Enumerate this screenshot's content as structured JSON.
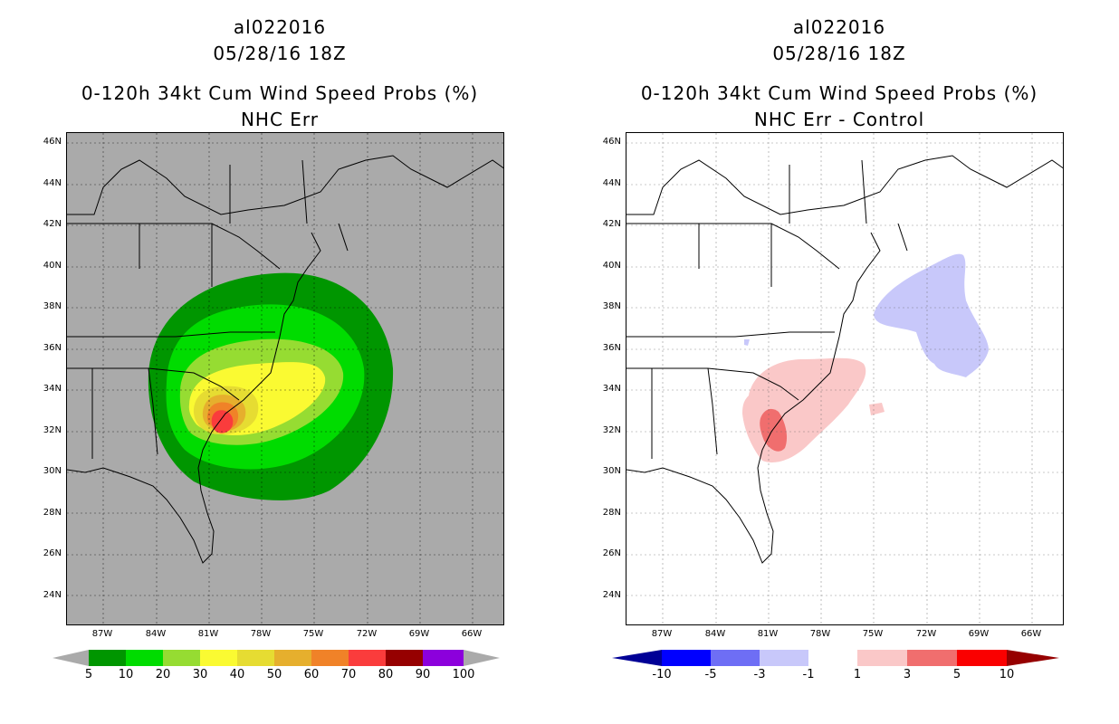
{
  "panels": [
    {
      "storm_id": "al022016",
      "datetime": "05/28/16 18Z",
      "product": "0-120h 34kt Cum Wind Speed Probs (%)",
      "subtitle": "NHC Err",
      "background": "#aaaaaa",
      "colorbar_labels": [
        "5",
        "10",
        "20",
        "30",
        "40",
        "50",
        "60",
        "70",
        "80",
        "90",
        "100"
      ],
      "colorbar_colors": [
        "#009600",
        "#00dc00",
        "#96dc32",
        "#fafa32",
        "#e6dc32",
        "#e6af2d",
        "#f08228",
        "#fa3c3c",
        "#960000",
        "#8c00dc"
      ],
      "colorbar_ends": [
        "#aaaaaa",
        "#aaaaaa"
      ]
    },
    {
      "storm_id": "al022016",
      "datetime": "05/28/16 18Z",
      "product": "0-120h 34kt Cum Wind Speed Probs (%)",
      "subtitle": "NHC Err - Control",
      "background": "#ffffff",
      "colorbar_labels": [
        "-10",
        "-5",
        "-3",
        "-1",
        "1",
        "3",
        "5",
        "10"
      ],
      "colorbar_colors": [
        "#0000ff",
        "#6e6ef5",
        "#c8c8fa",
        "#ffffff",
        "#fac8c8",
        "#f06e6e",
        "#fa0000"
      ],
      "colorbar_ends": [
        "#000096",
        "#960000"
      ]
    }
  ],
  "lat_labels": [
    "46N",
    "44N",
    "42N",
    "40N",
    "38N",
    "36N",
    "34N",
    "32N",
    "30N",
    "28N",
    "26N",
    "24N"
  ],
  "lon_labels": [
    "87W",
    "84W",
    "81W",
    "78W",
    "75W",
    "72W",
    "69W",
    "66W"
  ]
}
